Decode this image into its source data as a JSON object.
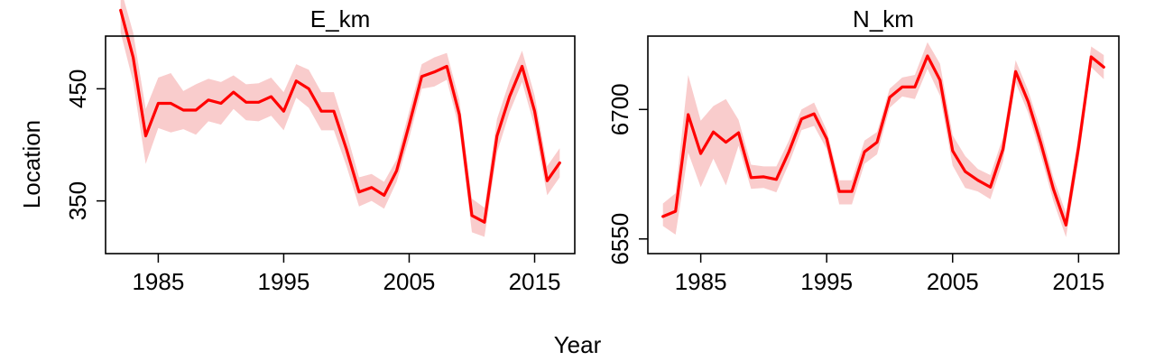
{
  "ylabel": "Location",
  "xlabel": "Year",
  "chart_data": [
    {
      "type": "line",
      "title": "E_km",
      "xlabel": "Year",
      "ylabel": "Location",
      "xlim": [
        1980.8,
        2018.2
      ],
      "ylim": [
        303,
        497
      ],
      "xticks": [
        1985,
        1995,
        2005,
        2015
      ],
      "yticks": [
        350,
        450
      ],
      "line_color": "#ff0000",
      "band_color": "#f9cccc",
      "series": [
        {
          "x": [
            1982,
            1983,
            1984,
            1985,
            1986,
            1987,
            1988,
            1989,
            1990,
            1991,
            1992,
            1993,
            1994,
            1995,
            1996,
            1997,
            1998,
            1999,
            2000,
            2001,
            2002,
            2003,
            2004,
            2005,
            2006,
            2007,
            2008,
            2009,
            2010,
            2011,
            2012,
            2013,
            2014,
            2015,
            2016,
            2017
          ],
          "y": [
            520,
            478,
            408,
            437,
            437,
            431,
            431,
            440,
            437,
            447,
            438,
            438,
            443,
            430,
            457,
            450,
            430,
            430,
            396,
            358,
            362,
            355,
            377,
            418,
            461,
            465,
            470,
            427,
            337,
            331,
            408,
            443,
            470,
            430,
            368,
            384
          ],
          "upper": [
            540,
            500,
            432,
            460,
            464,
            448,
            454,
            459,
            456,
            462,
            454,
            455,
            460,
            447,
            472,
            467,
            447,
            447,
            411,
            371,
            374,
            367,
            387,
            430,
            472,
            478,
            482,
            440,
            352,
            344,
            423,
            457,
            484,
            444,
            381,
            397
          ],
          "lower": [
            500,
            456,
            383,
            415,
            411,
            414,
            409,
            421,
            418,
            432,
            422,
            421,
            426,
            413,
            442,
            433,
            413,
            413,
            381,
            345,
            350,
            343,
            367,
            406,
            450,
            452,
            458,
            414,
            322,
            318,
            393,
            429,
            456,
            416,
            355,
            371
          ]
        }
      ]
    },
    {
      "type": "line",
      "title": "N_km",
      "xlabel": "Year",
      "ylabel": "Location",
      "xlim": [
        1980.8,
        2018.2
      ],
      "ylim": [
        6533,
        6785
      ],
      "xticks": [
        1985,
        1995,
        2005,
        2015
      ],
      "yticks": [
        6550,
        6700
      ],
      "line_color": "#ff0000",
      "band_color": "#f9cccc",
      "series": [
        {
          "x": [
            1982,
            1983,
            1984,
            1985,
            1986,
            1987,
            1988,
            1989,
            1990,
            1991,
            1992,
            1993,
            1994,
            1995,
            1996,
            1997,
            1998,
            1999,
            2000,
            2001,
            2002,
            2003,
            2004,
            2005,
            2006,
            2007,
            2008,
            2009,
            2010,
            2011,
            2012,
            2013,
            2014,
            2015,
            2016,
            2017
          ],
          "y": [
            6576,
            6582,
            6694,
            6649,
            6674,
            6662,
            6673,
            6621,
            6622,
            6619,
            6651,
            6689,
            6695,
            6666,
            6605,
            6605,
            6651,
            6662,
            6714,
            6726,
            6726,
            6762,
            6734,
            6652,
            6628,
            6618,
            6610,
            6654,
            6744,
            6709,
            6661,
            6608,
            6566,
            6656,
            6761,
            6749
          ],
          "upper": [
            6591,
            6603,
            6740,
            6687,
            6704,
            6712,
            6688,
            6636,
            6634,
            6634,
            6664,
            6700,
            6708,
            6676,
            6618,
            6618,
            6664,
            6674,
            6724,
            6737,
            6740,
            6778,
            6753,
            6670,
            6646,
            6631,
            6624,
            6668,
            6757,
            6722,
            6676,
            6621,
            6580,
            6671,
            6773,
            6763
          ],
          "lower": [
            6565,
            6555,
            6650,
            6610,
            6643,
            6612,
            6658,
            6608,
            6609,
            6604,
            6637,
            6676,
            6681,
            6654,
            6590,
            6590,
            6637,
            6648,
            6702,
            6715,
            6712,
            6747,
            6716,
            6635,
            6609,
            6605,
            6596,
            6640,
            6731,
            6696,
            6647,
            6594,
            6552,
            6641,
            6749,
            6735
          ]
        }
      ]
    }
  ]
}
